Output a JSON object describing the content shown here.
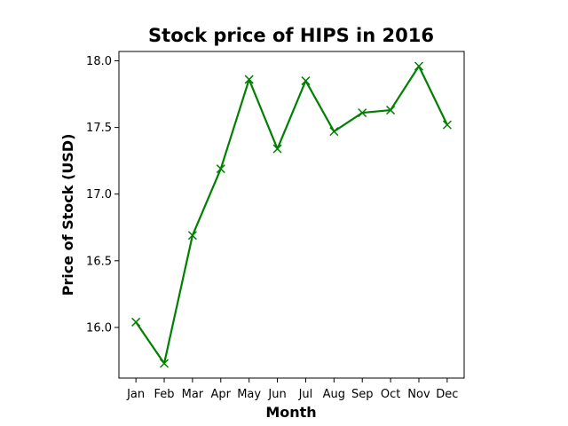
{
  "chart_data": {
    "type": "line",
    "title": "Stock price of HIPS in 2016",
    "xlabel": "Month",
    "ylabel": "Price of Stock (USD)",
    "categories": [
      "Jan",
      "Feb",
      "Mar",
      "Apr",
      "May",
      "Jun",
      "Jul",
      "Aug",
      "Sep",
      "Oct",
      "Nov",
      "Dec"
    ],
    "series": [
      {
        "values": [
          16.04,
          15.73,
          16.69,
          17.19,
          17.86,
          17.34,
          17.85,
          17.47,
          17.61,
          17.63,
          17.96,
          17.52
        ]
      }
    ],
    "ylim": [
      15.62,
      18.07
    ],
    "yticks": [
      "16.0",
      "16.5",
      "17.0",
      "17.5",
      "18.0"
    ],
    "line_color": "#008000",
    "marker": "x",
    "grid": false,
    "legend": false
  }
}
